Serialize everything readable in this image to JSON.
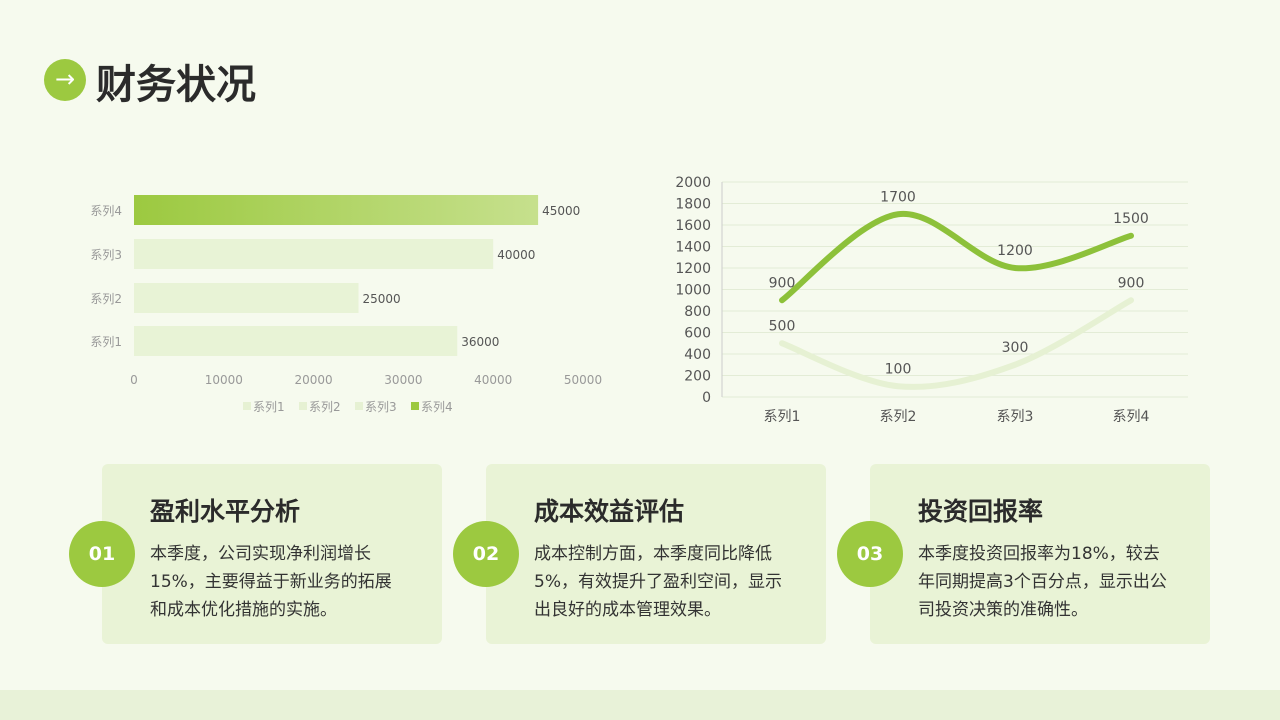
{
  "header": {
    "icon": "arrow-right-icon",
    "title": "财务状况"
  },
  "chart_data": [
    {
      "type": "bar",
      "orientation": "horizontal",
      "categories": [
        "系列1",
        "系列2",
        "系列3",
        "系列4"
      ],
      "values": [
        36000,
        25000,
        40000,
        45000
      ],
      "xlim": [
        0,
        50000
      ],
      "xticks": [
        "0",
        "10000",
        "20000",
        "30000",
        "40000",
        "50000"
      ],
      "legend": [
        "系列1",
        "系列2",
        "系列3",
        "系列4"
      ],
      "legend_position": "bottom",
      "colors": {
        "highlight": "#9cc940",
        "normal": "#e8f3d6"
      }
    },
    {
      "type": "line",
      "smooth": true,
      "categories": [
        "系列1",
        "系列2",
        "系列3",
        "系列4"
      ],
      "series": [
        {
          "values": [
            900,
            1700,
            1200,
            1500
          ],
          "color": "#8dc13a"
        },
        {
          "values": [
            500,
            100,
            300,
            900
          ],
          "color": "#e6f1d3"
        }
      ],
      "ylim": [
        0,
        2000
      ],
      "yticks": [
        "0",
        "200",
        "400",
        "600",
        "800",
        "1000",
        "1200",
        "1400",
        "1600",
        "1800",
        "2000"
      ],
      "grid": true
    }
  ],
  "cards": [
    {
      "num": "01",
      "title": "盈利水平分析",
      "lines": [
        "本季度，公司实现净利润增长",
        "15%，主要得益于新业务的拓展",
        "和成本优化措施的实施。"
      ]
    },
    {
      "num": "02",
      "title": "成本效益评估",
      "lines": [
        "成本控制方面，本季度同比降低",
        "5%，有效提升了盈利空间，显示",
        "出良好的成本管理效果。"
      ]
    },
    {
      "num": "03",
      "title": "投资回报率",
      "lines": [
        "本季度投资回报率为18%，较去",
        "年同期提高3个百分点，显示出公",
        "司投资决策的准确性。"
      ]
    }
  ]
}
